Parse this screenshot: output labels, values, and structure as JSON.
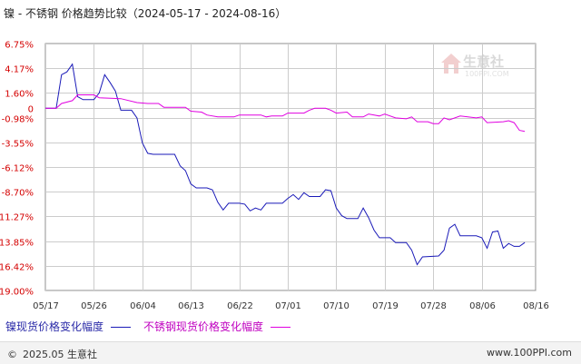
{
  "header": {
    "title": "镍 - 不锈钢 价格趋势比较（2024-05-17 - 2024-08-16）"
  },
  "legend": {
    "series1": "镍现货价格变化幅度",
    "series2": "不锈钢现货价格变化幅度"
  },
  "footer": {
    "copyright": "2025.05 生意社",
    "site": "www.100PPI.com"
  },
  "watermark": {
    "text": "生意社",
    "url": "100PPI.COM"
  },
  "chart_data": {
    "type": "line",
    "y_ticks": [
      "6.75%",
      "4.17%",
      "1.60%",
      "0",
      "-0.98%",
      "-3.55%",
      "-6.12%",
      "-8.70%",
      "-11.27%",
      "-13.85%",
      "-16.42%",
      "-19.00%"
    ],
    "y_tick_values": [
      6.75,
      4.17,
      1.6,
      0,
      -0.98,
      -3.55,
      -6.12,
      -8.7,
      -11.27,
      -13.85,
      -16.42,
      -19.0
    ],
    "ylim": [
      -19.0,
      6.75
    ],
    "x_ticks": [
      "05/17",
      "05/26",
      "06/04",
      "06/13",
      "06/22",
      "07/01",
      "07/10",
      "07/19",
      "07/28",
      "08/06",
      "08/16"
    ],
    "x_tick_index": [
      0,
      9,
      18,
      27,
      36,
      45,
      54,
      63,
      72,
      81,
      91
    ],
    "x_count": 92,
    "grid": true,
    "series": [
      {
        "name": "镍现货价格变化幅度",
        "color": "#1a1ab8",
        "points": [
          [
            0,
            0
          ],
          [
            2,
            0
          ],
          [
            3,
            3.5
          ],
          [
            4,
            3.8
          ],
          [
            5,
            4.6
          ],
          [
            6,
            1.2
          ],
          [
            7,
            0.9
          ],
          [
            9,
            0.9
          ],
          [
            10,
            1.6
          ],
          [
            11,
            3.5
          ],
          [
            12,
            2.7
          ],
          [
            13,
            1.8
          ],
          [
            14,
            -0.2
          ],
          [
            16,
            -0.2
          ],
          [
            17,
            -1.0
          ],
          [
            18,
            -3.6
          ],
          [
            19,
            -4.7
          ],
          [
            20,
            -4.8
          ],
          [
            24,
            -4.8
          ],
          [
            25,
            -6.0
          ],
          [
            26,
            -6.5
          ],
          [
            27,
            -7.9
          ],
          [
            28,
            -8.3
          ],
          [
            30,
            -8.3
          ],
          [
            31,
            -8.5
          ],
          [
            32,
            -9.8
          ],
          [
            33,
            -10.6
          ],
          [
            34,
            -9.9
          ],
          [
            36,
            -9.9
          ],
          [
            37,
            -10.0
          ],
          [
            38,
            -10.7
          ],
          [
            39,
            -10.4
          ],
          [
            40,
            -10.6
          ],
          [
            41,
            -9.9
          ],
          [
            44,
            -9.9
          ],
          [
            45,
            -9.4
          ],
          [
            46,
            -9.0
          ],
          [
            47,
            -9.5
          ],
          [
            48,
            -8.8
          ],
          [
            49,
            -9.2
          ],
          [
            51,
            -9.2
          ],
          [
            52,
            -8.5
          ],
          [
            53,
            -8.6
          ],
          [
            54,
            -10.4
          ],
          [
            55,
            -11.2
          ],
          [
            56,
            -11.5
          ],
          [
            58,
            -11.5
          ],
          [
            59,
            -10.4
          ],
          [
            60,
            -11.4
          ],
          [
            61,
            -12.7
          ],
          [
            62,
            -13.5
          ],
          [
            64,
            -13.5
          ],
          [
            65,
            -14.0
          ],
          [
            67,
            -14.0
          ],
          [
            68,
            -14.8
          ],
          [
            69,
            -16.3
          ],
          [
            70,
            -15.5
          ],
          [
            73,
            -15.4
          ],
          [
            74,
            -14.8
          ],
          [
            75,
            -12.5
          ],
          [
            76,
            -12.1
          ],
          [
            77,
            -13.3
          ],
          [
            80,
            -13.3
          ],
          [
            81,
            -13.5
          ],
          [
            82,
            -14.6
          ],
          [
            83,
            -12.9
          ],
          [
            84,
            -12.8
          ],
          [
            85,
            -14.6
          ],
          [
            86,
            -14.1
          ],
          [
            87,
            -14.4
          ],
          [
            88,
            -14.4
          ],
          [
            89,
            -14.0
          ]
        ]
      },
      {
        "name": "不锈钢现货价格变化幅度",
        "color": "#e000e0",
        "points": [
          [
            0,
            0
          ],
          [
            2,
            0
          ],
          [
            3,
            0.5
          ],
          [
            5,
            0.8
          ],
          [
            6,
            1.4
          ],
          [
            9,
            1.4
          ],
          [
            10,
            1.1
          ],
          [
            14,
            1.0
          ],
          [
            17,
            0.6
          ],
          [
            19,
            0.5
          ],
          [
            21,
            0.5
          ],
          [
            22,
            0.1
          ],
          [
            26,
            0.1
          ],
          [
            27,
            -0.3
          ],
          [
            29,
            -0.4
          ],
          [
            30,
            -0.7
          ],
          [
            32,
            -0.9
          ],
          [
            35,
            -0.9
          ],
          [
            36,
            -0.7
          ],
          [
            40,
            -0.7
          ],
          [
            41,
            -0.9
          ],
          [
            42,
            -0.8
          ],
          [
            44,
            -0.8
          ],
          [
            45,
            -0.5
          ],
          [
            48,
            -0.5
          ],
          [
            49,
            -0.2
          ],
          [
            50,
            0.0
          ],
          [
            52,
            0.0
          ],
          [
            53,
            -0.2
          ],
          [
            54,
            -0.5
          ],
          [
            56,
            -0.4
          ],
          [
            57,
            -0.9
          ],
          [
            59,
            -0.9
          ],
          [
            60,
            -0.6
          ],
          [
            62,
            -0.8
          ],
          [
            63,
            -0.6
          ],
          [
            65,
            -1.0
          ],
          [
            67,
            -1.1
          ],
          [
            68,
            -0.9
          ],
          [
            69,
            -1.4
          ],
          [
            71,
            -1.4
          ],
          [
            72,
            -1.6
          ],
          [
            73,
            -1.6
          ],
          [
            74,
            -1.0
          ],
          [
            75,
            -1.2
          ],
          [
            77,
            -0.8
          ],
          [
            80,
            -1.0
          ],
          [
            81,
            -0.9
          ],
          [
            82,
            -1.5
          ],
          [
            85,
            -1.4
          ],
          [
            86,
            -1.3
          ],
          [
            87,
            -1.5
          ],
          [
            88,
            -2.3
          ],
          [
            89,
            -2.4
          ]
        ]
      }
    ]
  }
}
